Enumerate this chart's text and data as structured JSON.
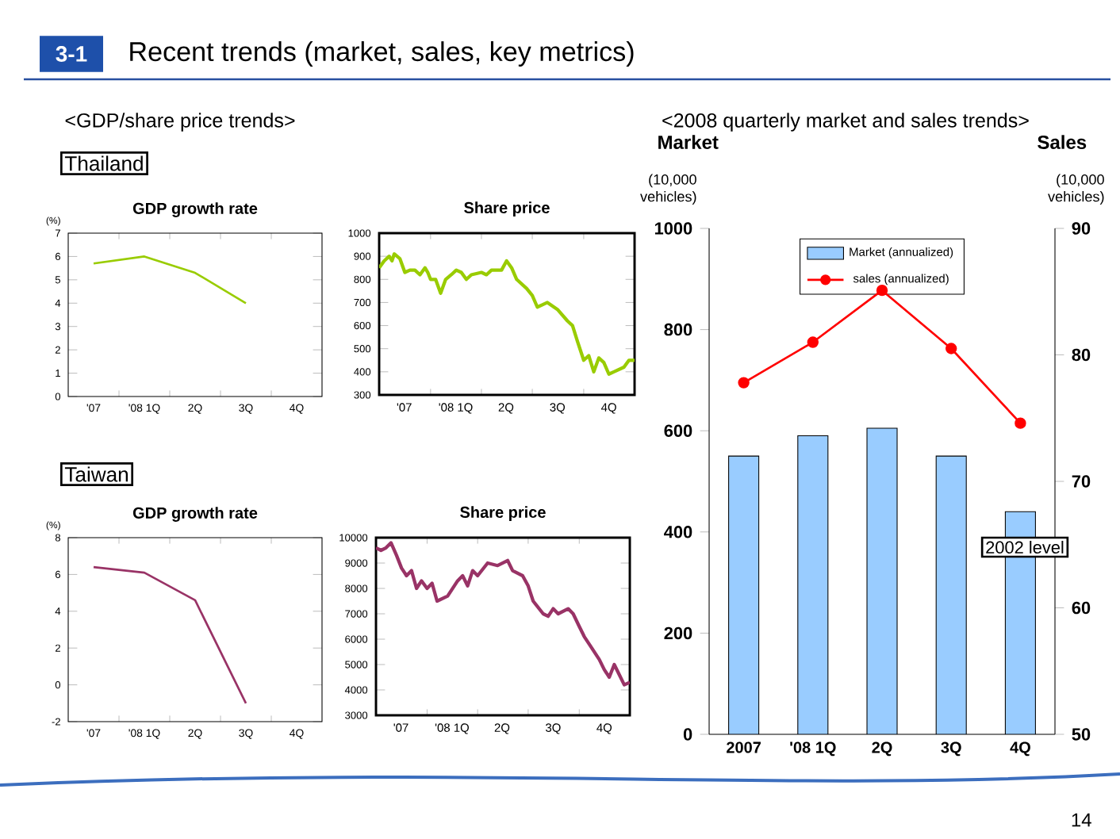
{
  "chart_data": [
    {
      "type": "line",
      "title": "GDP growth rate",
      "ylabel": "(%)",
      "categories": [
        "'07",
        "'08 1Q",
        "2Q",
        "3Q",
        "4Q"
      ],
      "color": "#99cc00",
      "values": [
        5.7,
        6.0,
        5.3,
        4.0,
        null
      ],
      "ylim": [
        0,
        7
      ],
      "yticks": [
        0,
        1,
        2,
        3,
        4,
        5,
        6,
        7
      ],
      "annotations": [
        "3-1",
        "Recent trends (market, sales, key metrics)",
        "<GDP/share price trends>",
        "Thailand"
      ]
    },
    {
      "type": "line",
      "title": "Share price",
      "color": "#99cc00",
      "xlim": [
        "2007-10-01",
        "2008-12-31"
      ],
      "xticks": [
        {
          "value": "2007-11-15",
          "label": "'07"
        },
        {
          "value": "2008-01-01",
          "label": null
        },
        {
          "value": "2008-02-15",
          "label": "'08 1Q"
        },
        {
          "value": "2008-04-01",
          "label": null
        },
        {
          "value": "2008-05-15",
          "label": "2Q"
        },
        {
          "value": "2008-07-01",
          "label": null
        },
        {
          "value": "2008-08-15",
          "label": "3Q"
        },
        {
          "value": "2008-10-01",
          "label": null
        },
        {
          "value": "2008-11-15",
          "label": "4Q"
        }
      ],
      "ylim": [
        300,
        1000
      ],
      "yticks": [
        300,
        400,
        500,
        600,
        700,
        800,
        900,
        1000
      ],
      "x": [
        "2007-10-01",
        "2007-10-10",
        "2007-10-19",
        "2007-10-24",
        "2007-10-28",
        "2007-11-07",
        "2007-11-16",
        "2007-11-25",
        "2007-12-04",
        "2007-12-13",
        "2007-12-22",
        "2007-12-27",
        "2008-01-01",
        "2008-01-10",
        "2008-01-19",
        "2008-01-28",
        "2008-02-07",
        "2008-02-16",
        "2008-02-25",
        "2008-03-05",
        "2008-03-14",
        "2008-04-01",
        "2008-04-10",
        "2008-04-19",
        "2008-05-07",
        "2008-05-16",
        "2008-05-25",
        "2008-06-03",
        "2008-06-21",
        "2008-07-01",
        "2008-07-10",
        "2008-07-19",
        "2008-07-28",
        "2008-08-15",
        "2008-09-02",
        "2008-09-11",
        "2008-09-20",
        "2008-10-01",
        "2008-10-10",
        "2008-10-19",
        "2008-10-28",
        "2008-11-06",
        "2008-11-15",
        "2008-11-24",
        "2008-12-12",
        "2008-12-21",
        "2008-12-31"
      ],
      "values": [
        850,
        880,
        900,
        880,
        910,
        890,
        830,
        840,
        840,
        820,
        850,
        830,
        800,
        800,
        740,
        800,
        820,
        840,
        830,
        800,
        820,
        830,
        820,
        840,
        840,
        880,
        850,
        800,
        760,
        730,
        680,
        690,
        700,
        670,
        620,
        600,
        530,
        450,
        470,
        400,
        460,
        440,
        390,
        400,
        420,
        450,
        450
      ]
    },
    {
      "type": "line",
      "title": "GDP growth rate",
      "ylabel": "(%)",
      "categories": [
        "'07",
        "'08 1Q",
        "2Q",
        "3Q",
        "4Q"
      ],
      "color": "#993366",
      "values": [
        6.4,
        6.1,
        4.6,
        -1.0,
        null
      ],
      "ylim": [
        -2,
        8
      ],
      "yticks": [
        -2,
        0,
        2,
        4,
        6,
        8
      ],
      "annotations": [
        "Taiwan"
      ]
    },
    {
      "type": "line",
      "title": "Share price",
      "color": "#993366",
      "xlim": [
        "2007-10-01",
        "2008-12-31"
      ],
      "xticks": [
        {
          "value": "2007-11-15",
          "label": "'07"
        },
        {
          "value": "2008-01-01",
          "label": null
        },
        {
          "value": "2008-02-15",
          "label": "'08 1Q"
        },
        {
          "value": "2008-04-01",
          "label": null
        },
        {
          "value": "2008-05-15",
          "label": "2Q"
        },
        {
          "value": "2008-07-01",
          "label": null
        },
        {
          "value": "2008-08-15",
          "label": "3Q"
        },
        {
          "value": "2008-10-01",
          "label": null
        },
        {
          "value": "2008-11-15",
          "label": "4Q"
        }
      ],
      "ylim": [
        3000,
        10000
      ],
      "yticks": [
        3000,
        4000,
        5000,
        6000,
        7000,
        8000,
        9000,
        10000
      ],
      "x": [
        "2007-10-01",
        "2007-10-10",
        "2007-10-19",
        "2007-10-28",
        "2007-11-07",
        "2007-11-16",
        "2007-11-25",
        "2007-12-04",
        "2007-12-13",
        "2007-12-22",
        "2008-01-01",
        "2008-01-10",
        "2008-01-19",
        "2008-02-07",
        "2008-02-25",
        "2008-03-05",
        "2008-03-14",
        "2008-03-23",
        "2008-04-01",
        "2008-04-19",
        "2008-05-07",
        "2008-05-25",
        "2008-06-03",
        "2008-06-21",
        "2008-07-01",
        "2008-07-10",
        "2008-07-28",
        "2008-08-06",
        "2008-08-15",
        "2008-08-24",
        "2008-09-11",
        "2008-09-20",
        "2008-10-01",
        "2008-10-10",
        "2008-10-19",
        "2008-11-06",
        "2008-11-15",
        "2008-11-24",
        "2008-12-03",
        "2008-12-12",
        "2008-12-21",
        "2008-12-31"
      ],
      "values": [
        9600,
        9500,
        9600,
        9800,
        9300,
        8800,
        8500,
        8700,
        8000,
        8300,
        8000,
        8200,
        7500,
        7700,
        8300,
        8500,
        8100,
        8700,
        8500,
        9000,
        8900,
        9100,
        8700,
        8500,
        8100,
        7500,
        7000,
        6900,
        7200,
        7000,
        7200,
        7000,
        6500,
        6100,
        5800,
        5200,
        4800,
        4500,
        5000,
        4600,
        4200,
        4300
      ]
    },
    {
      "type": "bar",
      "title": "<2008 quarterly market and sales trends>",
      "ylabel": "Market",
      "y2label": "Sales",
      "categories": [
        "2007",
        "'08 1Q",
        "2Q",
        "3Q",
        "4Q"
      ],
      "series": [
        {
          "name": "Market (annualized)",
          "type": "bar",
          "color": "#99ccff",
          "values": [
            550,
            590,
            605,
            550,
            440
          ]
        },
        {
          "name": "sales (annualized)",
          "type": "line",
          "axis": "y2",
          "marker": "circle",
          "color": "#ff0000",
          "values": [
            77.8,
            81.0,
            85.1,
            80.5,
            74.6
          ]
        }
      ],
      "ylim": [
        0,
        1000
      ],
      "yticks": [
        0,
        200,
        400,
        600,
        800,
        1000
      ],
      "y2lim": [
        50,
        90
      ],
      "y2ticks": [
        50,
        60,
        70,
        80,
        90
      ],
      "legend": "top",
      "annotations": [
        "(10,000 vehicles)",
        "(10,000 vehicles)",
        "2002 level",
        "14"
      ]
    }
  ]
}
